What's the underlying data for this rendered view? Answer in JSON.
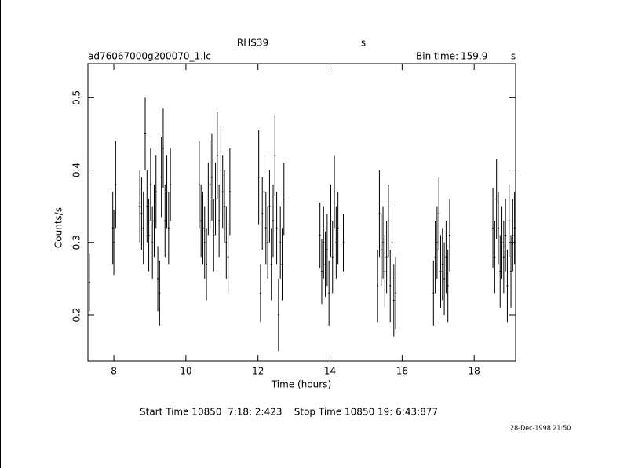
{
  "chart_data": {
    "type": "errorbar",
    "title": "RHS39",
    "title_unit": "s",
    "subtitle": "ad76067000g200070_1.lc",
    "bin_time_label": "Bin time:",
    "bin_time": "159.9",
    "bin_time_unit": "s",
    "xlabel": "Time (hours)",
    "ylabel": "Counts/s",
    "footer": "Start Time 10850  7:18: 2:423    Stop Time 10850 19: 6:43:877",
    "timestamp": "28-Dec-1998 21:50",
    "color": "#000000",
    "xlim": [
      7.28,
      19.15
    ],
    "ylim": [
      0.136,
      0.547
    ],
    "xticks": [
      8,
      10,
      12,
      14,
      16,
      18
    ],
    "yticks": [
      0.2,
      0.3,
      0.4,
      0.5
    ],
    "x": [
      7.32,
      7.97,
      8.0,
      8.05,
      8.72,
      8.77,
      8.82,
      8.87,
      8.92,
      8.97,
      9.02,
      9.07,
      9.12,
      9.17,
      9.22,
      9.27,
      9.32,
      9.37,
      9.42,
      9.47,
      9.52,
      9.57,
      10.37,
      10.42,
      10.47,
      10.52,
      10.57,
      10.62,
      10.67,
      10.72,
      10.77,
      10.82,
      10.87,
      10.92,
      10.97,
      11.02,
      11.07,
      11.12,
      11.17,
      11.22,
      12.02,
      12.07,
      12.12,
      12.17,
      12.22,
      12.27,
      12.32,
      12.37,
      12.42,
      12.47,
      12.52,
      12.57,
      12.62,
      12.67,
      12.72,
      13.72,
      13.77,
      13.82,
      13.87,
      13.92,
      13.97,
      14.02,
      14.07,
      14.12,
      14.17,
      14.22,
      14.37,
      15.32,
      15.37,
      15.42,
      15.47,
      15.52,
      15.57,
      15.62,
      15.67,
      15.72,
      15.77,
      15.82,
      16.87,
      16.92,
      16.97,
      17.02,
      17.07,
      17.12,
      17.17,
      17.22,
      17.27,
      17.32,
      18.52,
      18.57,
      18.62,
      18.67,
      18.72,
      18.77,
      18.82,
      18.87,
      18.92,
      18.97,
      19.02,
      19.07,
      19.12
    ],
    "values": [
      0.245,
      0.32,
      0.3,
      0.38,
      0.35,
      0.34,
      0.32,
      0.45,
      0.35,
      0.31,
      0.38,
      0.3,
      0.33,
      0.37,
      0.25,
      0.23,
      0.39,
      0.43,
      0.33,
      0.37,
      0.32,
      0.38,
      0.38,
      0.33,
      0.32,
      0.3,
      0.27,
      0.36,
      0.38,
      0.39,
      0.31,
      0.36,
      0.42,
      0.33,
      0.4,
      0.37,
      0.35,
      0.3,
      0.28,
      0.37,
      0.39,
      0.23,
      0.34,
      0.37,
      0.32,
      0.3,
      0.35,
      0.27,
      0.33,
      0.42,
      0.32,
      0.2,
      0.3,
      0.27,
      0.36,
      0.31,
      0.26,
      0.3,
      0.27,
      0.29,
      0.23,
      0.33,
      0.28,
      0.37,
      0.3,
      0.32,
      0.3,
      0.24,
      0.34,
      0.29,
      0.3,
      0.26,
      0.28,
      0.33,
      0.24,
      0.3,
      0.22,
      0.23,
      0.23,
      0.28,
      0.3,
      0.34,
      0.26,
      0.27,
      0.25,
      0.28,
      0.24,
      0.31,
      0.32,
      0.28,
      0.36,
      0.32,
      0.26,
      0.3,
      0.28,
      0.31,
      0.24,
      0.33,
      0.26,
      0.31,
      0.32
    ],
    "errors": [
      0.04,
      0.05,
      0.045,
      0.06,
      0.05,
      0.05,
      0.05,
      0.05,
      0.05,
      0.05,
      0.05,
      0.05,
      0.05,
      0.05,
      0.045,
      0.045,
      0.055,
      0.055,
      0.05,
      0.05,
      0.05,
      0.05,
      0.06,
      0.05,
      0.05,
      0.05,
      0.05,
      0.05,
      0.06,
      0.06,
      0.05,
      0.05,
      0.06,
      0.05,
      0.06,
      0.05,
      0.05,
      0.05,
      0.05,
      0.06,
      0.065,
      0.04,
      0.05,
      0.05,
      0.05,
      0.05,
      0.05,
      0.05,
      0.05,
      0.055,
      0.05,
      0.05,
      0.05,
      0.05,
      0.05,
      0.045,
      0.045,
      0.05,
      0.045,
      0.05,
      0.045,
      0.05,
      0.05,
      0.05,
      0.05,
      0.05,
      0.04,
      0.05,
      0.06,
      0.05,
      0.05,
      0.05,
      0.05,
      0.05,
      0.05,
      0.05,
      0.05,
      0.05,
      0.045,
      0.05,
      0.05,
      0.05,
      0.05,
      0.05,
      0.05,
      0.05,
      0.05,
      0.05,
      0.055,
      0.05,
      0.055,
      0.05,
      0.05,
      0.05,
      0.05,
      0.05,
      0.05,
      0.05,
      0.05,
      0.05,
      0.05
    ]
  }
}
